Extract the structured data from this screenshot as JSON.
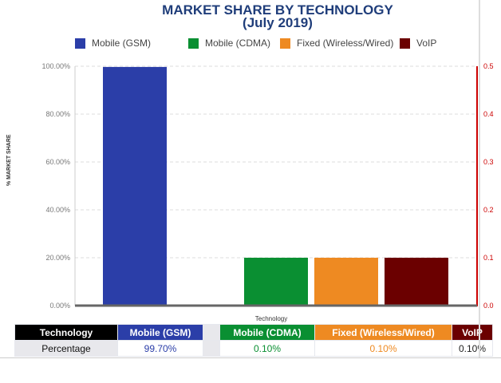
{
  "chart_data": {
    "type": "bar",
    "title": "MARKET SHARE BY TECHNOLOGY",
    "subtitle": "(July 2019)",
    "xlabel": "Technology",
    "ylabel": "% MARKET SHARE",
    "ylim": [
      0,
      100
    ],
    "yticks": [
      "0.00%",
      "20.00%",
      "40.00%",
      "60.00%",
      "80.00%",
      "100.00%"
    ],
    "y2ticks": [
      "0.0",
      "0.1",
      "0.2",
      "0.3",
      "0.4",
      "0.5"
    ],
    "categories": [
      "Mobile (GSM)",
      "Mobile (CDMA)",
      "Fixed (Wireless/Wired)",
      "VoIP"
    ],
    "values": [
      99.7,
      0.1,
      0.1,
      0.1
    ],
    "colors": [
      "#2b3ea8",
      "#0a8f32",
      "#ee8a22",
      "#6b0000"
    ],
    "legend": "top"
  },
  "table": {
    "header_label": "Technology",
    "row_label": "Percentage",
    "columns": [
      {
        "name": "Mobile (GSM)",
        "value": "99.70%"
      },
      {
        "name": "Mobile (CDMA)",
        "value": "0.10%"
      },
      {
        "name": "Fixed (Wireless/Wired)",
        "value": "0.10%"
      },
      {
        "name": "VoIP",
        "value": "0.10%"
      }
    ]
  }
}
